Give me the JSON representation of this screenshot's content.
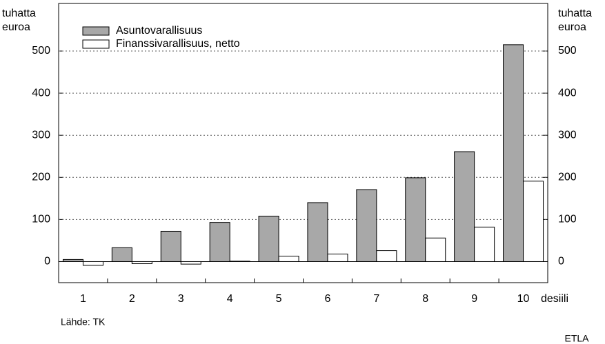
{
  "chart_data": {
    "type": "bar",
    "y_label": [
      "tuhatta",
      "euroa"
    ],
    "x_label": "desiili",
    "source": "Lähde: TK",
    "publisher": "ETLA",
    "categories": [
      "1",
      "2",
      "3",
      "4",
      "5",
      "6",
      "7",
      "8",
      "9",
      "10"
    ],
    "series": [
      {
        "name": "Asuntovarallisuus",
        "color": "#a8a8a8",
        "values": [
          5,
          33,
          72,
          93,
          108,
          140,
          171,
          199,
          261,
          515
        ]
      },
      {
        "name": "Finanssivarallisuus, netto",
        "color": "#ffffff",
        "values": [
          -9,
          -5,
          -6,
          1,
          13,
          18,
          26,
          56,
          82,
          191
        ]
      }
    ],
    "ylim": [
      -50,
      613
    ],
    "yticks": [
      0,
      100,
      200,
      300,
      400,
      500
    ],
    "grid": true
  }
}
